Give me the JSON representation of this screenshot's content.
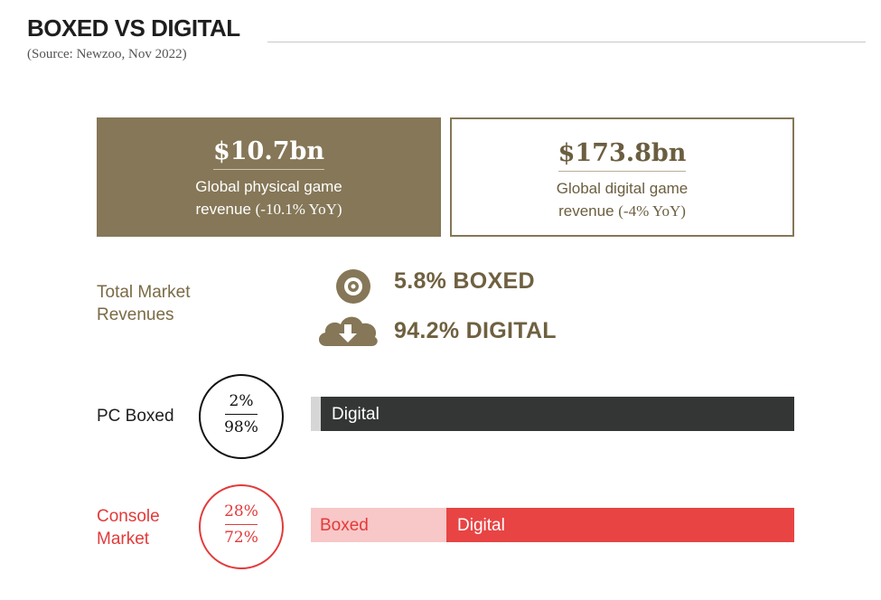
{
  "title": "BOXED VS DIGITAL",
  "source": "(Source: Newzoo, Nov 2022)",
  "cards": {
    "physical": {
      "amount": "$10.7bn",
      "line1": "Global physical game",
      "line2": "revenue",
      "yoy": "(-10.1% YoY)"
    },
    "digital": {
      "amount": "$173.8bn",
      "line1": "Global digital game",
      "line2": "revenue",
      "yoy": "(-4% YoY)"
    }
  },
  "total_market": {
    "label_line1": "Total Market",
    "label_line2": "Revenues",
    "boxed_text": "5.8% BOXED",
    "digital_text": "94.2% DIGITAL",
    "boxed_icon": "disc-icon",
    "digital_icon": "cloud-download-icon"
  },
  "colors": {
    "gold": "#857757",
    "pc_digital": "#333634",
    "pc_boxed": "#d6d6d6",
    "console_digital": "#e84444",
    "console_boxed": "#f8c7c7",
    "console_text": "#e33a3a"
  },
  "chart_data": {
    "type": "bar",
    "orientation": "horizontal",
    "stacked": true,
    "unit": "%",
    "categories": [
      "PC Boxed",
      "Console Market"
    ],
    "category_lines": [
      [
        "PC Boxed"
      ],
      [
        "Console",
        "Market"
      ]
    ],
    "series": [
      {
        "name": "Boxed",
        "values": [
          2,
          28
        ]
      },
      {
        "name": "Digital",
        "values": [
          98,
          72
        ]
      }
    ],
    "circle_labels": [
      {
        "top": "2%",
        "bottom": "98%"
      },
      {
        "top": "28%",
        "bottom": "72%"
      }
    ],
    "segment_labels": [
      {
        "boxed": "",
        "digital": "Digital"
      },
      {
        "boxed": "Boxed",
        "digital": "Digital"
      }
    ],
    "xlim": [
      0,
      100
    ]
  }
}
